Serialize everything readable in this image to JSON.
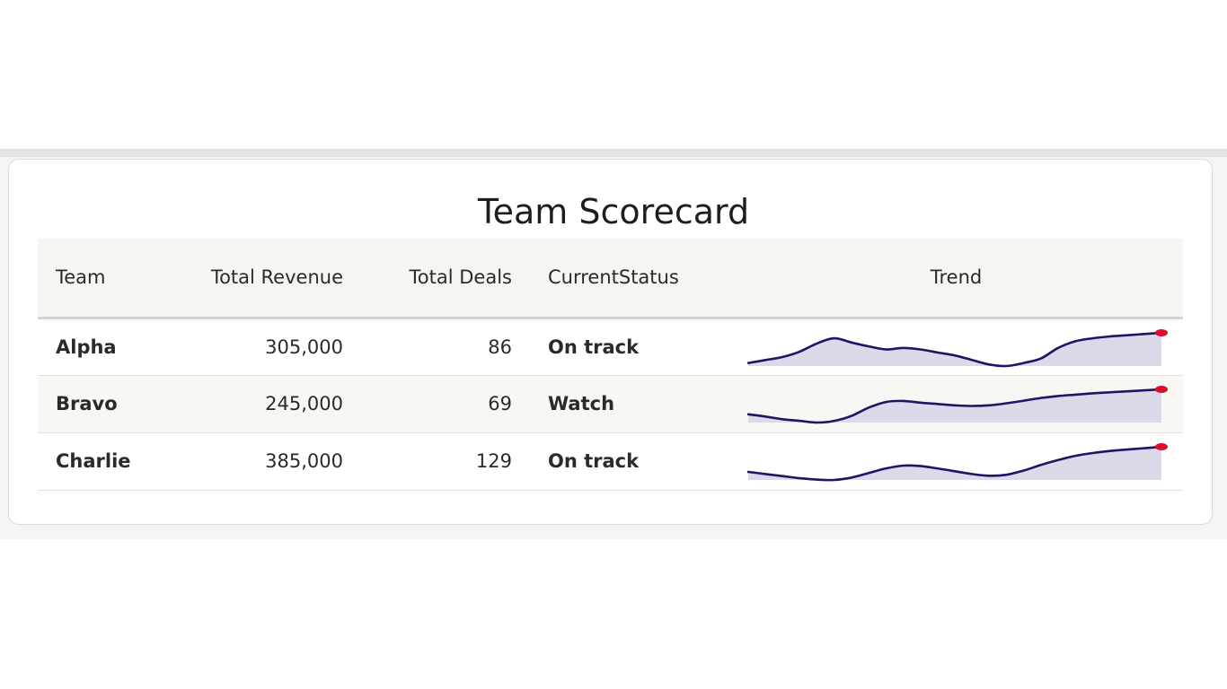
{
  "title": "Team Scorecard",
  "columns": [
    "Team",
    "Total Revenue",
    "Total Deals",
    "CurrentStatus",
    "Trend"
  ],
  "rows": [
    {
      "team": "Alpha",
      "revenue": "305,000",
      "deals": "86",
      "status": "On track",
      "trend": [
        0.0,
        0.1,
        0.2,
        0.38,
        0.65,
        0.82,
        0.68,
        0.55,
        0.45,
        0.5,
        0.45,
        0.35,
        0.25,
        0.1,
        -0.05,
        -0.1,
        0.0,
        0.15,
        0.5,
        0.72,
        0.82,
        0.88,
        0.92,
        0.96,
        1.0
      ]
    },
    {
      "team": "Bravo",
      "revenue": "245,000",
      "deals": "69",
      "status": "Watch",
      "trend": [
        0.25,
        0.18,
        0.1,
        0.05,
        0.0,
        0.05,
        0.2,
        0.45,
        0.62,
        0.65,
        0.6,
        0.56,
        0.52,
        0.5,
        0.52,
        0.58,
        0.66,
        0.74,
        0.8,
        0.84,
        0.88,
        0.91,
        0.94,
        0.97,
        1.0
      ]
    },
    {
      "team": "Charlie",
      "revenue": "385,000",
      "deals": "129",
      "status": "On track",
      "trend": [
        0.28,
        0.22,
        0.16,
        0.1,
        0.06,
        0.05,
        0.12,
        0.25,
        0.38,
        0.46,
        0.45,
        0.38,
        0.3,
        0.22,
        0.17,
        0.2,
        0.32,
        0.48,
        0.62,
        0.74,
        0.82,
        0.88,
        0.92,
        0.96,
        1.0
      ]
    }
  ],
  "colors": {
    "trend_line": "#1f1466",
    "trend_fill": "#dcd9e8",
    "trend_endpoint": "#d7102e"
  }
}
